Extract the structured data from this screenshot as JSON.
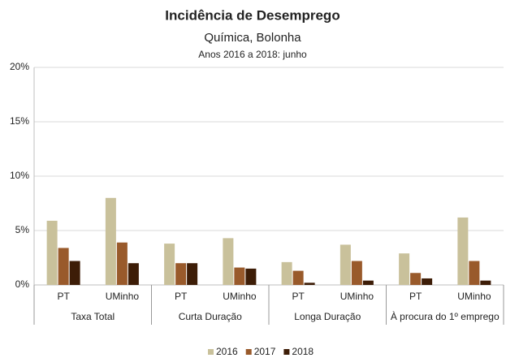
{
  "chart_data": {
    "type": "bar",
    "title": "Incidência de Desemprego",
    "subtitle": "Química, Bolonha",
    "subtitle2": "Anos 2016 a 2018: junho",
    "categories": [
      "PT",
      "UMinho",
      "PT",
      "UMinho",
      "PT",
      "UMinho",
      "PT",
      "UMinho"
    ],
    "groups": [
      "Taxa Total",
      "Curta Duração",
      "Longa Duração",
      "À procura do 1º emprego"
    ],
    "series": [
      {
        "name": "2016",
        "color": "#c9c19b",
        "values": [
          5.9,
          8.0,
          3.8,
          4.3,
          2.1,
          3.7,
          2.9,
          6.2
        ]
      },
      {
        "name": "2017",
        "color": "#995a2b",
        "values": [
          3.4,
          3.9,
          2.0,
          1.6,
          1.3,
          2.2,
          1.1,
          2.2
        ]
      },
      {
        "name": "2018",
        "color": "#3d1d07",
        "values": [
          2.2,
          2.0,
          2.0,
          1.5,
          0.2,
          0.4,
          0.6,
          0.4
        ]
      }
    ],
    "ylim": [
      0,
      20
    ],
    "yticks": [
      {
        "value": 0,
        "label": "0%"
      },
      {
        "value": 5,
        "label": "5%"
      },
      {
        "value": 10,
        "label": "10%"
      },
      {
        "value": 15,
        "label": "15%"
      },
      {
        "value": 20,
        "label": "20%"
      }
    ],
    "grid": true,
    "legend": "bottom"
  }
}
